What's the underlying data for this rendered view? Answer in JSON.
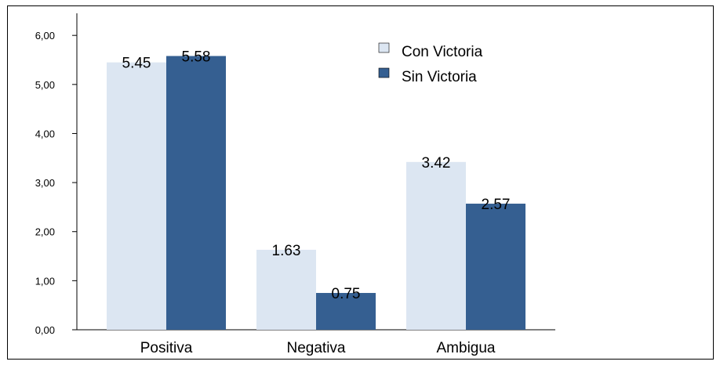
{
  "chart_data": {
    "type": "bar",
    "categories": [
      "Positiva",
      "Negativa",
      "Ambigua"
    ],
    "series": [
      {
        "name": "Con Victoria",
        "color": "#dce6f2",
        "values": [
          5.45,
          1.63,
          3.42
        ]
      },
      {
        "name": "Sin Victoria",
        "color": "#355f91",
        "values": [
          5.58,
          0.75,
          2.57
        ]
      }
    ],
    "ylim": [
      0,
      6.45
    ],
    "yticks": [
      {
        "value": 0,
        "label": "0,00"
      },
      {
        "value": 1,
        "label": "1,00"
      },
      {
        "value": 2,
        "label": "2,00"
      },
      {
        "value": 3,
        "label": "3,00"
      },
      {
        "value": 4,
        "label": "4,00"
      },
      {
        "value": 5,
        "label": "5,00"
      },
      {
        "value": 6,
        "label": "6,00"
      }
    ],
    "legend": "upper right"
  }
}
